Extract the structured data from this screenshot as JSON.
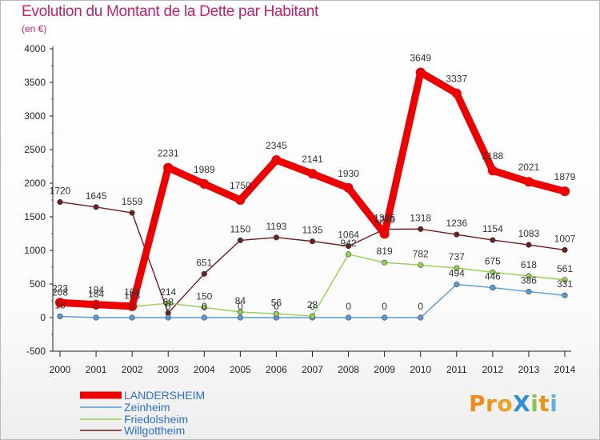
{
  "title": "Evolution du Montant de la Dette par Habitant",
  "subtitle": "(en €)",
  "brand": "ProXiti",
  "colors": {
    "title": "#c3216f",
    "LANDERSHEIM": "#ee0000",
    "Zeinheim": "#5b9bd5",
    "Friedolsheim": "#92d050",
    "Willgottheim": "#6b1e1e"
  },
  "chart_data": {
    "type": "line",
    "x": [
      "2000",
      "2001",
      "2002",
      "2003",
      "2004",
      "2005",
      "2006",
      "2007",
      "2008",
      "2009",
      "2010",
      "2011",
      "2012",
      "2013",
      "2014"
    ],
    "ylim": [
      -500,
      4000
    ],
    "yticks": [
      "-500",
      "0",
      "500",
      "1000",
      "1500",
      "2000",
      "2500",
      "3000",
      "3500",
      "4000"
    ],
    "grid": false,
    "legend_position": "bottom-left",
    "series": [
      {
        "name": "LANDERSHEIM",
        "color": "#ee0000",
        "values": [
          223,
          194,
          168,
          2231,
          1989,
          1750,
          2345,
          2141,
          1930,
          1245,
          3649,
          3337,
          2188,
          2021,
          1879
        ],
        "labels": [
          "223",
          "194",
          "168",
          "2231",
          "1989",
          "1750",
          "2345",
          "2141",
          "1930",
          "1245",
          "3649",
          "3337",
          "2188",
          "2021",
          "1879"
        ]
      },
      {
        "name": "Zeinheim",
        "color": "#5b9bd5",
        "values": [
          18,
          0,
          0,
          0,
          0,
          0,
          0,
          0,
          0,
          0,
          0,
          494,
          446,
          386,
          331
        ],
        "labels": [
          "18",
          "0",
          "0",
          "0",
          "0",
          "0",
          "0",
          "0",
          "0",
          "0",
          "0",
          "494",
          "446",
          "386",
          "331"
        ]
      },
      {
        "name": "Friedolsheim",
        "color": "#92d050",
        "values": [
          208,
          184,
          163,
          214,
          150,
          84,
          56,
          23,
          942,
          819,
          782,
          737,
          675,
          618,
          561
        ],
        "labels": [
          "208",
          "184",
          "163",
          "214",
          "150",
          "84",
          "56",
          "23",
          "942",
          "819",
          "782",
          "737",
          "675",
          "618",
          "561"
        ]
      },
      {
        "name": "Willgottheim",
        "color": "#6b1e1e",
        "values": [
          1720,
          1645,
          1559,
          68,
          651,
          1150,
          1193,
          1135,
          1064,
          1315,
          1318,
          1236,
          1154,
          1083,
          1007
        ],
        "labels": [
          "1720",
          "1645",
          "1559",
          "68",
          "651",
          "1150",
          "1193",
          "1135",
          "1064",
          "1315",
          "1318",
          "1236",
          "1154",
          "1083",
          "1007"
        ]
      }
    ]
  }
}
